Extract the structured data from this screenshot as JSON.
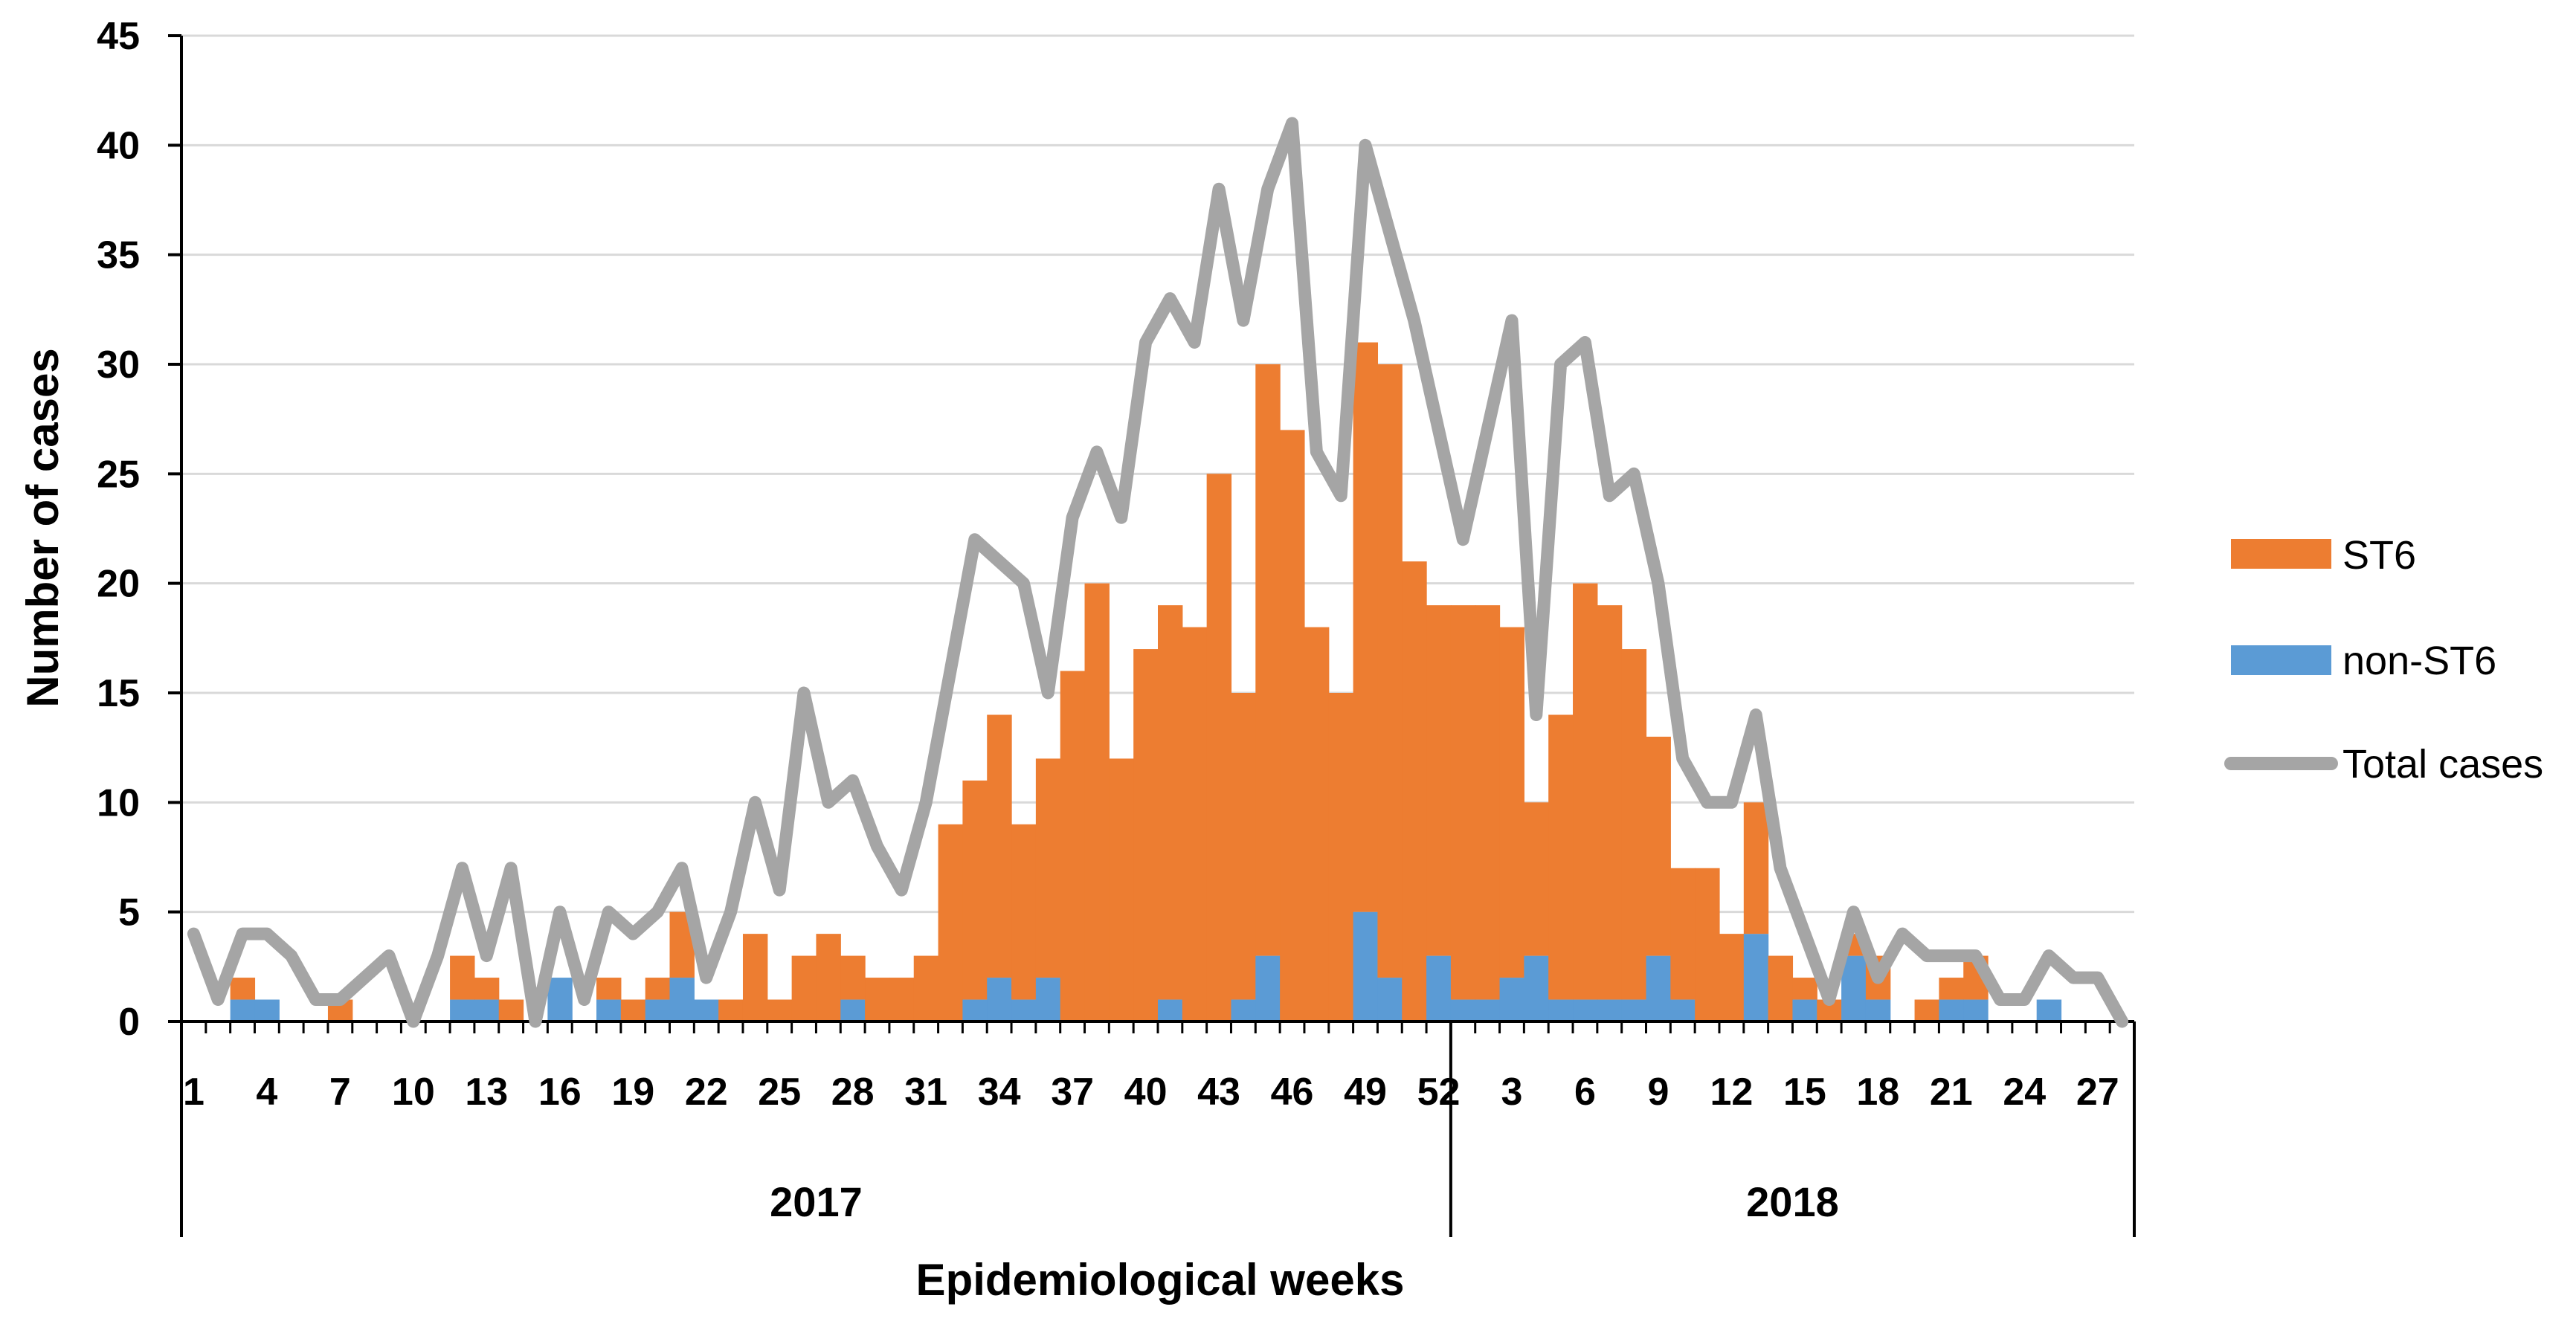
{
  "chart_data": {
    "type": "bar",
    "stacked": true,
    "title": "",
    "xlabel": "Epidemiological weeks",
    "ylabel": "Number of cases",
    "ylim": [
      0,
      45
    ],
    "yticks": [
      0,
      5,
      10,
      15,
      20,
      25,
      30,
      35,
      40,
      45
    ],
    "grid": true,
    "legend_position": "right",
    "colors": {
      "st6": "#ED7D31",
      "non_st6": "#5B9BD5",
      "total": "#A5A5A5"
    },
    "categories": [
      "1",
      "2",
      "3",
      "4",
      "5",
      "6",
      "7",
      "8",
      "9",
      "10",
      "11",
      "12",
      "13",
      "14",
      "15",
      "16",
      "17",
      "18",
      "19",
      "20",
      "21",
      "22",
      "23",
      "24",
      "25",
      "26",
      "27",
      "28",
      "29",
      "30",
      "31",
      "32",
      "33",
      "34",
      "35",
      "36",
      "37",
      "38",
      "39",
      "40",
      "41",
      "42",
      "43",
      "44",
      "45",
      "46",
      "47",
      "48",
      "49",
      "50",
      "51",
      "52",
      "1",
      "2",
      "3",
      "4",
      "5",
      "6",
      "7",
      "8",
      "9",
      "10",
      "11",
      "12",
      "13",
      "14",
      "15",
      "16",
      "17",
      "18",
      "19",
      "20",
      "21",
      "22",
      "23",
      "24",
      "25",
      "26",
      "27",
      "28"
    ],
    "years": [
      {
        "label": "2017",
        "start_index": 0,
        "count": 52
      },
      {
        "label": "2018",
        "start_index": 52,
        "count": 28
      }
    ],
    "tick_labels": [
      {
        "index": 0,
        "label": "1"
      },
      {
        "index": 3,
        "label": "4"
      },
      {
        "index": 6,
        "label": "7"
      },
      {
        "index": 9,
        "label": "10"
      },
      {
        "index": 12,
        "label": "13"
      },
      {
        "index": 15,
        "label": "16"
      },
      {
        "index": 18,
        "label": "19"
      },
      {
        "index": 21,
        "label": "22"
      },
      {
        "index": 24,
        "label": "25"
      },
      {
        "index": 27,
        "label": "28"
      },
      {
        "index": 30,
        "label": "31"
      },
      {
        "index": 33,
        "label": "34"
      },
      {
        "index": 36,
        "label": "37"
      },
      {
        "index": 39,
        "label": "40"
      },
      {
        "index": 42,
        "label": "43"
      },
      {
        "index": 45,
        "label": "46"
      },
      {
        "index": 48,
        "label": "49"
      },
      {
        "index": 51,
        "label": "52"
      },
      {
        "index": 52,
        "label": ""
      },
      {
        "index": 54,
        "label": "3"
      },
      {
        "index": 57,
        "label": "6"
      },
      {
        "index": 60,
        "label": "9"
      },
      {
        "index": 63,
        "label": "12"
      },
      {
        "index": 66,
        "label": "15"
      },
      {
        "index": 69,
        "label": "18"
      },
      {
        "index": 72,
        "label": "21"
      },
      {
        "index": 75,
        "label": "24"
      },
      {
        "index": 78,
        "label": "27"
      }
    ],
    "series": [
      {
        "name": "ST6",
        "type": "bar",
        "values": [
          0,
          0,
          1,
          0,
          0,
          0,
          1,
          0,
          0,
          0,
          0,
          2,
          1,
          1,
          0,
          0,
          0,
          1,
          1,
          1,
          3,
          0,
          1,
          4,
          1,
          3,
          4,
          2,
          2,
          2,
          3,
          9,
          10,
          12,
          8,
          10,
          16,
          20,
          12,
          17,
          18,
          18,
          25,
          14,
          27,
          27,
          18,
          15,
          26,
          28,
          21,
          16,
          18,
          18,
          16,
          7,
          13,
          19,
          18,
          16,
          10,
          6,
          7,
          4,
          6,
          3,
          1,
          1,
          1,
          2,
          0,
          1,
          1,
          2,
          0,
          0,
          0,
          0,
          0,
          0
        ]
      },
      {
        "name": "non-ST6",
        "type": "bar",
        "values": [
          0,
          0,
          1,
          1,
          0,
          0,
          0,
          0,
          0,
          0,
          0,
          1,
          1,
          0,
          0,
          2,
          0,
          1,
          0,
          1,
          2,
          1,
          0,
          0,
          0,
          0,
          0,
          1,
          0,
          0,
          0,
          0,
          1,
          2,
          1,
          2,
          0,
          0,
          0,
          0,
          1,
          0,
          0,
          1,
          3,
          0,
          0,
          0,
          5,
          2,
          0,
          3,
          1,
          1,
          2,
          3,
          1,
          1,
          1,
          1,
          3,
          1,
          0,
          0,
          4,
          0,
          1,
          0,
          3,
          1,
          0,
          0,
          1,
          1,
          0,
          0,
          1,
          0,
          0,
          0
        ]
      },
      {
        "name": "Total cases",
        "type": "line",
        "values": [
          4,
          1,
          4,
          4,
          3,
          1,
          1,
          2,
          3,
          0,
          3,
          7,
          3,
          7,
          0,
          5,
          1,
          5,
          4,
          5,
          7,
          2,
          5,
          10,
          6,
          15,
          10,
          11,
          8,
          6,
          10,
          16,
          22,
          21,
          20,
          15,
          23,
          26,
          23,
          31,
          33,
          31,
          38,
          32,
          38,
          41,
          26,
          24,
          40,
          36,
          32,
          27,
          22,
          27,
          32,
          14,
          30,
          31,
          24,
          25,
          20,
          12,
          10,
          10,
          14,
          7,
          4,
          1,
          5,
          2,
          4,
          3,
          3,
          3,
          1,
          1,
          3,
          2,
          2,
          0
        ]
      }
    ]
  }
}
